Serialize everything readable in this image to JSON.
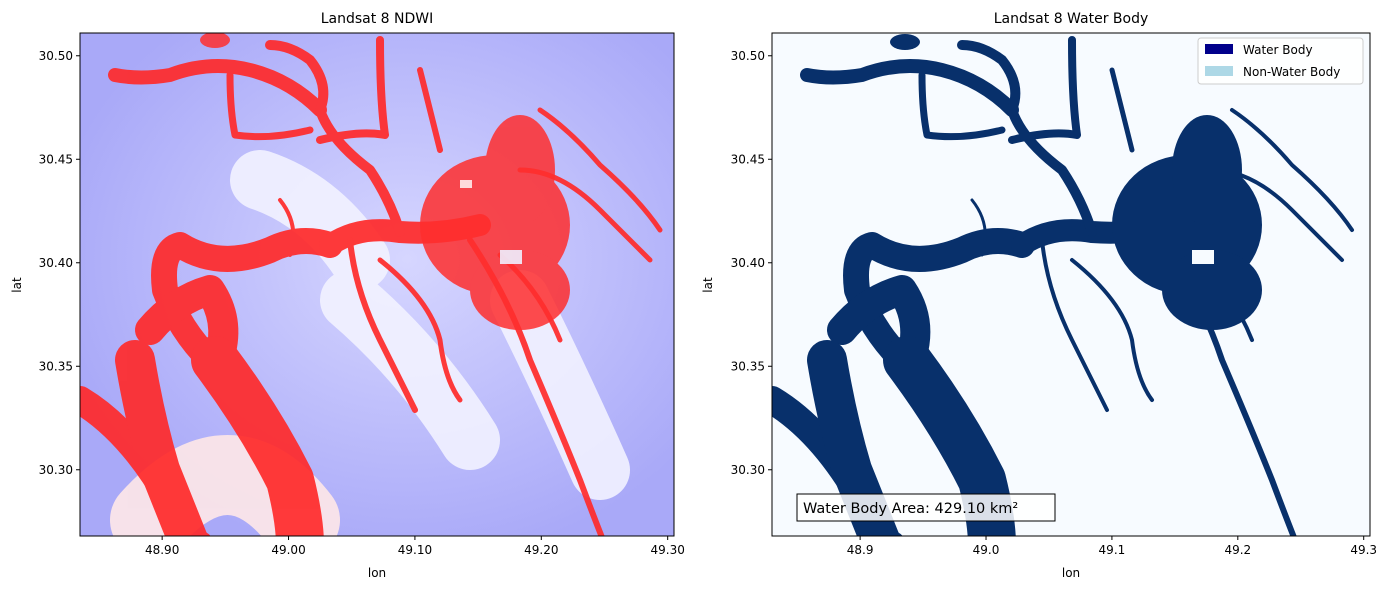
{
  "chart_data": [
    {
      "type": "heatmap",
      "title": "Landsat 8 NDWI",
      "xlabel": "lon",
      "ylabel": "lat",
      "xlim": [
        48.835,
        49.305
      ],
      "ylim": [
        30.268,
        30.511
      ],
      "x_ticks": [
        48.9,
        49.0,
        49.1,
        49.2,
        49.3
      ],
      "x_tick_labels": [
        "48.90",
        "49.00",
        "49.10",
        "49.20",
        "49.30"
      ],
      "y_ticks": [
        30.3,
        30.35,
        30.4,
        30.45,
        30.5
      ],
      "y_tick_labels": [
        "30.30",
        "30.35",
        "30.40",
        "30.45",
        "30.50"
      ],
      "colormap": "bwr",
      "colors": {
        "low": "#b4b4ff",
        "mid": "#ffffff",
        "high": "#ff1a1a"
      }
    },
    {
      "type": "heatmap",
      "title": "Landsat 8 Water Body",
      "xlabel": "lon",
      "ylabel": "lat",
      "xlim": [
        48.83,
        49.305
      ],
      "ylim": [
        30.268,
        30.511
      ],
      "x_ticks": [
        48.9,
        49.0,
        49.1,
        49.2,
        49.3
      ],
      "x_tick_labels": [
        "48.9",
        "49.0",
        "49.1",
        "49.2",
        "49.3"
      ],
      "y_ticks": [
        30.3,
        30.35,
        30.4,
        30.45,
        30.5
      ],
      "y_tick_labels": [
        "30.30",
        "30.35",
        "30.40",
        "30.45",
        "30.50"
      ],
      "legend": {
        "position": "top-right",
        "entries": [
          {
            "label": "Water Body",
            "color": "#00008b"
          },
          {
            "label": "Non-Water Body",
            "color": "#add8e6"
          }
        ]
      },
      "annotation": "Water Body Area: 429.10 km²",
      "colors": {
        "water": "#08306b",
        "background": "#f7fbff"
      }
    }
  ]
}
